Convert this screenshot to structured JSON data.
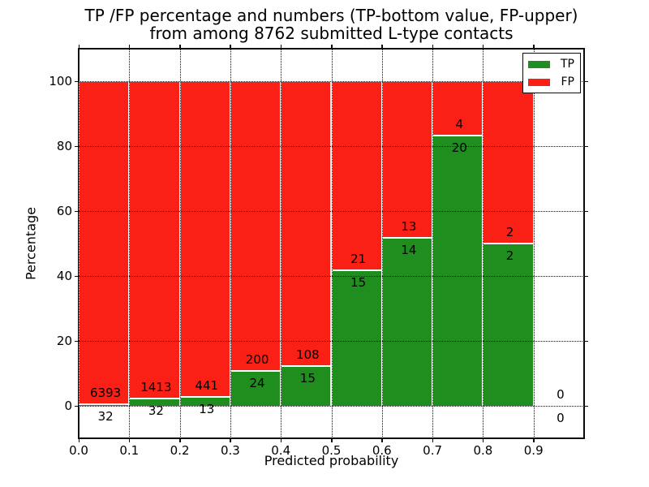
{
  "title": {
    "line1": "TP /FP percentage and numbers (TP-bottom value, FP-upper)",
    "line2": "from among 8762 submitted L-type contacts"
  },
  "axes": {
    "xlabel": "Predicted probability",
    "ylabel": "Percentage",
    "x_tick_labels": [
      "0.0",
      "0.1",
      "0.2",
      "0.3",
      "0.4",
      "0.5",
      "0.6",
      "0.7",
      "0.8",
      "0.9"
    ],
    "y_tick_labels": [
      "0",
      "20",
      "40",
      "60",
      "80",
      "100"
    ]
  },
  "legend": {
    "entries": [
      {
        "label": "TP",
        "color": "#1f8e1f"
      },
      {
        "label": "FP",
        "color": "#fb2016"
      }
    ]
  },
  "colors": {
    "tp_green": "#1f8e1f",
    "fp_red": "#fb2016",
    "bar_edge": "#ffffff",
    "grid": "#111111",
    "spine": "#0c0c0c",
    "background": "#ffffff"
  },
  "chart_data": {
    "type": "bar",
    "stacked": true,
    "normalized": "each bar stacks TP%+FP% to 100, labels show raw counts",
    "title": "TP /FP percentage and numbers (TP-bottom value, FP-upper) from among 8762 submitted L-type contacts",
    "xlabel": "Predicted probability",
    "ylabel": "Percentage",
    "xlim": [
      0.0,
      1.0
    ],
    "ylim": [
      -10,
      110
    ],
    "x_ticks": [
      0.0,
      0.1,
      0.2,
      0.3,
      0.4,
      0.5,
      0.6,
      0.7,
      0.8,
      0.9
    ],
    "y_ticks": [
      0,
      20,
      40,
      60,
      80,
      100
    ],
    "grid": "dotted both axes",
    "legend_position": "upper right",
    "total_contacts": 8762,
    "bin_width": 0.1,
    "bins": [
      {
        "range": [
          0.0,
          0.1
        ],
        "tp": 32,
        "fp": 6393,
        "tp_pct": 0.5,
        "fp_pct": 99.5
      },
      {
        "range": [
          0.1,
          0.2
        ],
        "tp": 32,
        "fp": 1413,
        "tp_pct": 2.2,
        "fp_pct": 97.8
      },
      {
        "range": [
          0.2,
          0.3
        ],
        "tp": 13,
        "fp": 441,
        "tp_pct": 2.9,
        "fp_pct": 97.1
      },
      {
        "range": [
          0.3,
          0.4
        ],
        "tp": 24,
        "fp": 200,
        "tp_pct": 10.7,
        "fp_pct": 89.3
      },
      {
        "range": [
          0.4,
          0.5
        ],
        "tp": 15,
        "fp": 108,
        "tp_pct": 12.2,
        "fp_pct": 87.8
      },
      {
        "range": [
          0.5,
          0.6
        ],
        "tp": 15,
        "fp": 21,
        "tp_pct": 41.7,
        "fp_pct": 58.3
      },
      {
        "range": [
          0.6,
          0.7
        ],
        "tp": 14,
        "fp": 13,
        "tp_pct": 51.9,
        "fp_pct": 48.1
      },
      {
        "range": [
          0.7,
          0.8
        ],
        "tp": 20,
        "fp": 4,
        "tp_pct": 83.3,
        "fp_pct": 16.7
      },
      {
        "range": [
          0.8,
          0.9
        ],
        "tp": 2,
        "fp": 2,
        "tp_pct": 50.0,
        "fp_pct": 50.0
      },
      {
        "range": [
          0.9,
          1.0
        ],
        "tp": 0,
        "fp": 0,
        "tp_pct": 0,
        "fp_pct": 0
      }
    ],
    "series": [
      {
        "name": "TP",
        "color": "#1f8e1f",
        "values": [
          32,
          32,
          13,
          24,
          15,
          15,
          14,
          20,
          2,
          0
        ]
      },
      {
        "name": "FP",
        "color": "#fb2016",
        "values": [
          6393,
          1413,
          441,
          200,
          108,
          21,
          13,
          4,
          2,
          0
        ]
      }
    ]
  }
}
